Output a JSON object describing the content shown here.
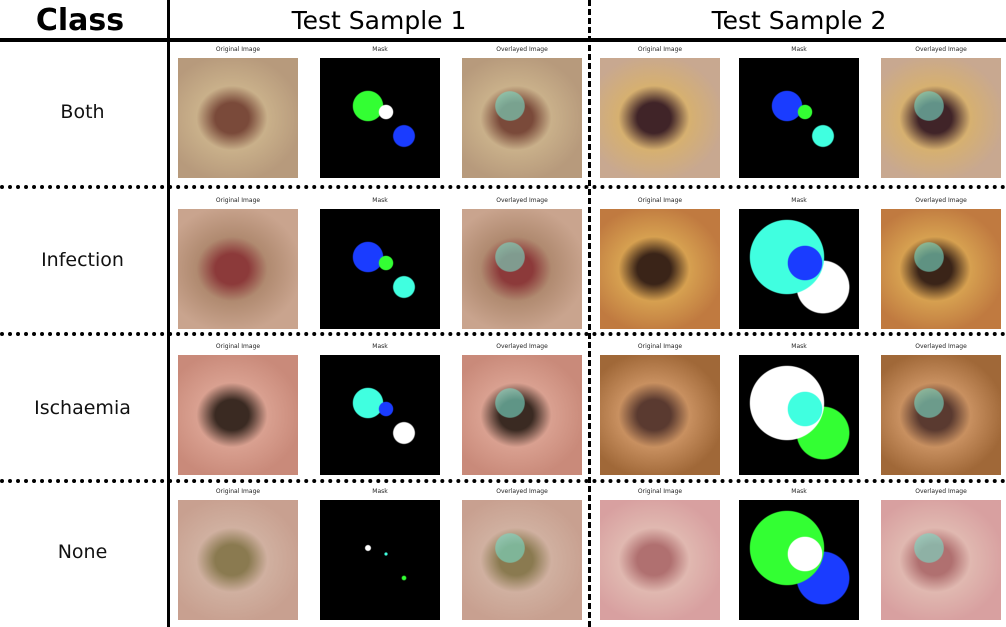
{
  "header": {
    "class_label": "Class",
    "samples": [
      "Test Sample 1",
      "Test Sample 2"
    ]
  },
  "panel_titles": [
    "Original Image",
    "Mask",
    "Overlayed Image"
  ],
  "rows": [
    {
      "label": "Both"
    },
    {
      "label": "Infection"
    },
    {
      "label": "Ischaemia"
    },
    {
      "label": "None"
    }
  ]
}
